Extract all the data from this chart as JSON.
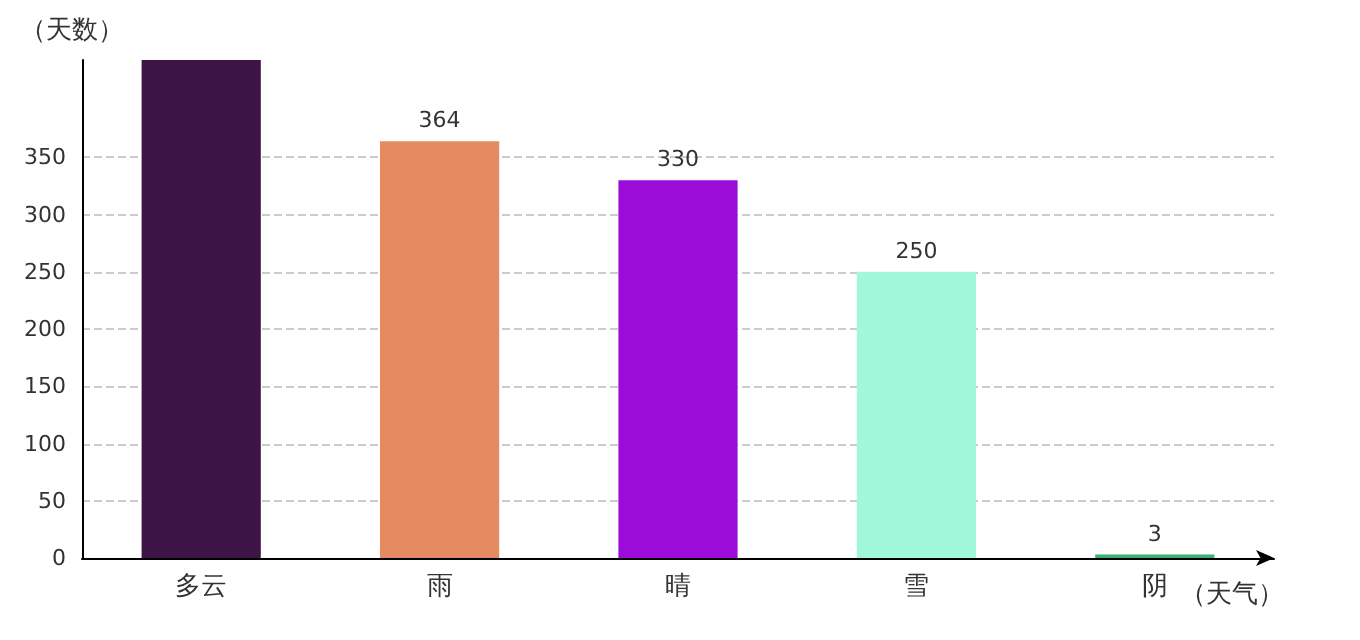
{
  "chart_data": {
    "type": "bar",
    "xlabel": "（天气）",
    "ylabel": "（天数）",
    "categories": [
      "多云",
      "雨",
      "晴",
      "雪",
      "阴"
    ],
    "values": [
      435,
      364,
      330,
      250,
      3
    ],
    "colors": [
      "#3e1446",
      "#e68a62",
      "#9c0cd8",
      "#a2f6da",
      "#3cb073"
    ],
    "value_labels": [
      null,
      "364",
      "330",
      "250",
      "3"
    ],
    "ylim": [
      0,
      435
    ],
    "yticks": [
      0,
      50,
      100,
      150,
      200,
      250,
      300,
      350
    ],
    "grid": "y"
  }
}
